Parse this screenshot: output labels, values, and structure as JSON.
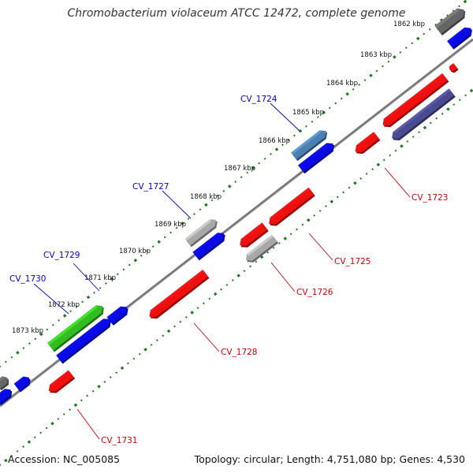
{
  "title": "Chromobacterium violaceum ATCC 12472, complete genome",
  "footer": {
    "accession": "Accession: NC_005085",
    "summary": "Topology: circular; Length: 4,751,080 bp; Genes: 4,530"
  },
  "kbp_ticks": [
    {
      "label": "1862 kbp"
    },
    {
      "label": "1863 kbp"
    },
    {
      "label": "1864 kbp"
    },
    {
      "label": "1865 kbp"
    },
    {
      "label": "1866 kbp"
    },
    {
      "label": "1867 kbp"
    },
    {
      "label": "1868 kbp"
    },
    {
      "label": "1869 kbp"
    },
    {
      "label": "1870 kbp"
    },
    {
      "label": "1871 kbp"
    },
    {
      "label": "1872 kbp"
    },
    {
      "label": "1873 kbp"
    }
  ],
  "gene_labels": [
    {
      "name": "CV_1724",
      "color": "#0000cc"
    },
    {
      "name": "CV_1727",
      "color": "#0000cc"
    },
    {
      "name": "CV_1729",
      "color": "#0000cc"
    },
    {
      "name": "CV_1730",
      "color": "#0000cc"
    },
    {
      "name": "CV_1723",
      "color": "#cc0000"
    },
    {
      "name": "CV_1725",
      "color": "#cc0000"
    },
    {
      "name": "CV_1726",
      "color": "#cc0000"
    },
    {
      "name": "CV_1728",
      "color": "#cc0000"
    },
    {
      "name": "CV_1731",
      "color": "#cc0000"
    }
  ],
  "colors": {
    "forward_gene": "#0a0ae6",
    "reverse_gene": "#ee0f0f",
    "grey_gene": "#a8a8a8",
    "dark_gene": "#666666",
    "green_gene": "#33bb22",
    "navy_gene": "#4a4a8f",
    "backbone": "#7a7a7a",
    "tick_dots": "#1a7a1a"
  }
}
